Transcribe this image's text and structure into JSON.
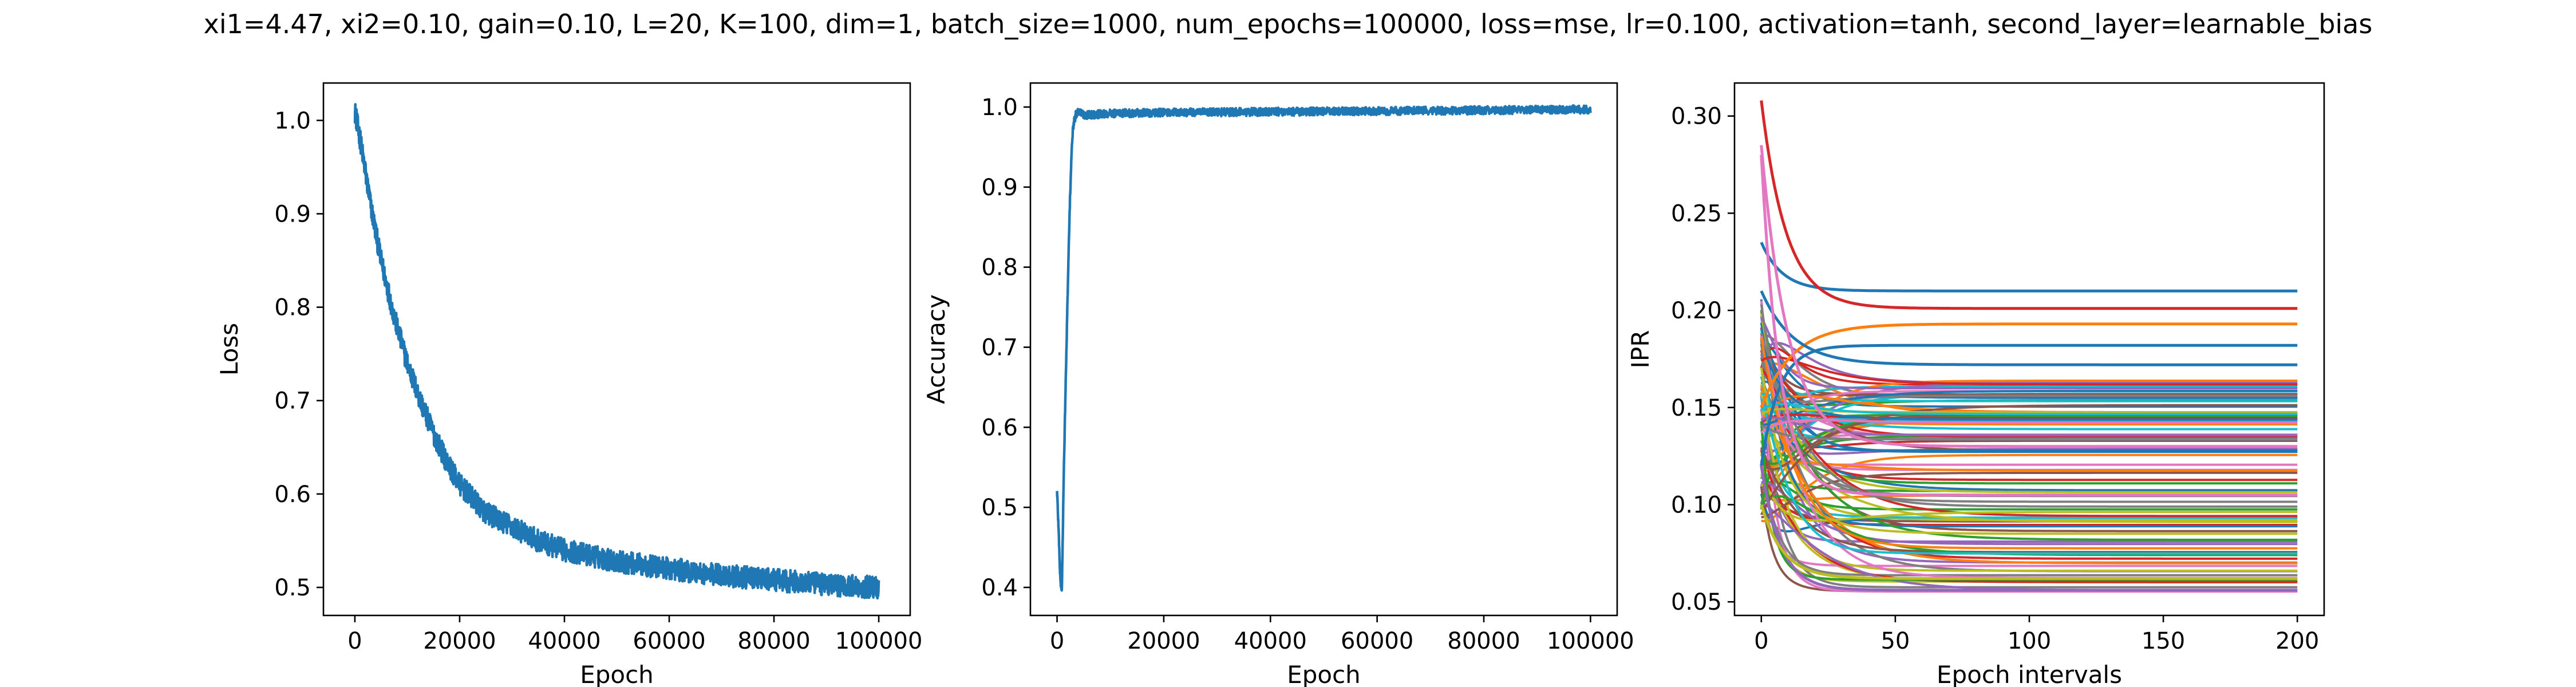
{
  "figure": {
    "suptitle": "xi1=4.47, xi2=0.10, gain=0.10, L=20, K=100, dim=1, batch_size=1000, num_epochs=100000, loss=mse, lr=0.100, activation=tanh, second_layer=learnable_bias"
  },
  "chart_data": [
    {
      "type": "line",
      "xlabel": "Epoch",
      "ylabel": "Loss",
      "xlim": [
        -6000,
        106000
      ],
      "ylim": [
        0.47,
        1.04
      ],
      "xticks": [
        0,
        20000,
        40000,
        60000,
        80000,
        100000
      ],
      "xtick_labels": [
        "0",
        "20000",
        "40000",
        "60000",
        "80000",
        "100000"
      ],
      "yticks": [
        0.5,
        0.6,
        0.7,
        0.8,
        0.9,
        1.0
      ],
      "ytick_labels": [
        "0.5",
        "0.6",
        "0.7",
        "0.8",
        "0.9",
        "1.0"
      ],
      "grid": false,
      "series": [
        {
          "color": "#1f77b4",
          "x": [
            0,
            1000,
            2000,
            3000,
            4000,
            5000,
            7500,
            10000,
            12500,
            15000,
            17500,
            20000,
            25000,
            30000,
            35000,
            40000,
            50000,
            60000,
            70000,
            80000,
            90000,
            100000
          ],
          "y": [
            1.01,
            0.98,
            0.945,
            0.91,
            0.88,
            0.85,
            0.79,
            0.74,
            0.7,
            0.665,
            0.635,
            0.61,
            0.58,
            0.565,
            0.55,
            0.54,
            0.528,
            0.52,
            0.513,
            0.508,
            0.503,
            0.5
          ],
          "noise_amplitude": 0.012
        }
      ]
    },
    {
      "type": "line",
      "xlabel": "Epoch",
      "ylabel": "Accuracy",
      "xlim": [
        -5000,
        105000
      ],
      "ylim": [
        0.365,
        1.03
      ],
      "xticks": [
        0,
        20000,
        40000,
        60000,
        80000,
        100000
      ],
      "xtick_labels": [
        "0",
        "20000",
        "40000",
        "60000",
        "80000",
        "100000"
      ],
      "yticks": [
        0.4,
        0.5,
        0.6,
        0.7,
        0.8,
        0.9,
        1.0
      ],
      "ytick_labels": [
        "0.4",
        "0.5",
        "0.6",
        "0.7",
        "0.8",
        "0.9",
        "1.0"
      ],
      "grid": false,
      "series": [
        {
          "color": "#1f77b4",
          "x": [
            0,
            300,
            600,
            900,
            1200,
            1500,
            1800,
            2100,
            2400,
            2700,
            3000,
            3500,
            4000,
            5000,
            10000,
            20000,
            40000,
            60000,
            80000,
            100000
          ],
          "y": [
            0.52,
            0.47,
            0.41,
            0.395,
            0.52,
            0.62,
            0.71,
            0.8,
            0.88,
            0.94,
            0.975,
            0.99,
            0.995,
            0.99,
            0.992,
            0.993,
            0.994,
            0.995,
            0.996,
            0.997
          ],
          "noise_amplitude": 0.005
        }
      ]
    },
    {
      "type": "line",
      "xlabel": "Epoch intervals",
      "ylabel": "IPR",
      "xlim": [
        -10,
        210
      ],
      "ylim": [
        0.043,
        0.317
      ],
      "xticks": [
        0,
        50,
        100,
        150,
        200
      ],
      "xtick_labels": [
        "0",
        "50",
        "100",
        "150",
        "200"
      ],
      "yticks": [
        0.05,
        0.1,
        0.15,
        0.2,
        0.25,
        0.3
      ],
      "ytick_labels": [
        "0.05",
        "0.10",
        "0.15",
        "0.20",
        "0.25",
        "0.30"
      ],
      "grid": false,
      "num_series": 100,
      "x_range": [
        0,
        200
      ],
      "palette": [
        "#1f77b4",
        "#ff7f0e",
        "#2ca02c",
        "#d62728",
        "#9467bd",
        "#8c564b",
        "#e377c2",
        "#7f7f7f",
        "#bcbd22",
        "#17becf"
      ],
      "series": [
        {
          "color": "#1f77b4",
          "start": 0.235,
          "end": 0.21
        },
        {
          "color": "#d62728",
          "start": 0.308,
          "end": 0.201
        },
        {
          "color": "#ff7f0e",
          "start": 0.15,
          "end": 0.193
        },
        {
          "color": "#1f77b4",
          "start": 0.12,
          "end": 0.182
        },
        {
          "color": "#1f77b4",
          "start": 0.21,
          "end": 0.172
        },
        {
          "color": "#e377c2",
          "start": 0.285,
          "end": 0.13
        },
        {
          "color": "#e377c2",
          "start": 0.28,
          "end": 0.105
        },
        {
          "color": "#9467bd",
          "start": 0.12,
          "end": 0.056
        },
        {
          "color": "#bcbd22",
          "start": 0.1,
          "end": 0.062
        }
      ]
    }
  ]
}
